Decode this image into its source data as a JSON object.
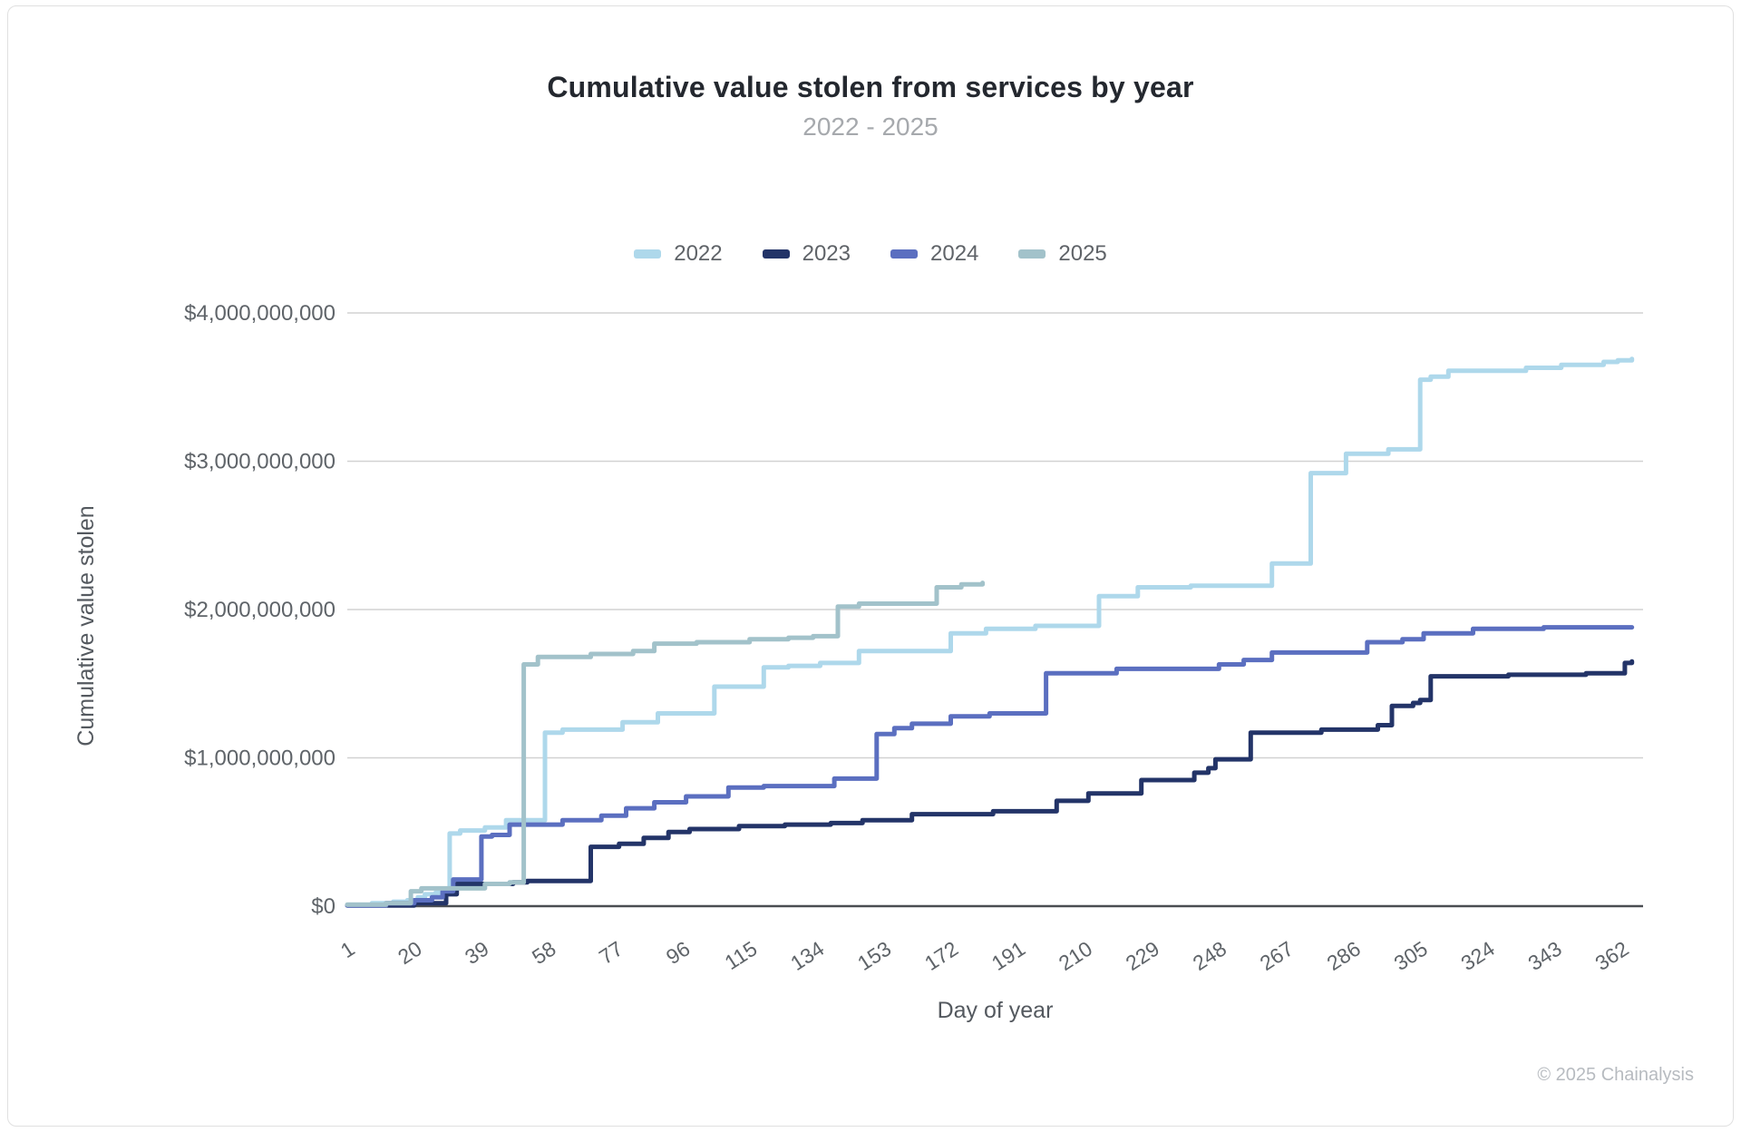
{
  "chart_data": {
    "type": "line",
    "step_mode": "step-after",
    "title": "Cumulative value stolen from services by year",
    "subtitle": "2022 - 2025",
    "xlabel": "Day of year",
    "ylabel": "Cumulative value stolen",
    "xlim": [
      1,
      365
    ],
    "ylim_billions": [
      0,
      4
    ],
    "grid": "horizontal",
    "legend_position": "top-center",
    "x_ticks": [
      1,
      20,
      39,
      58,
      77,
      96,
      115,
      134,
      153,
      172,
      191,
      210,
      229,
      248,
      267,
      286,
      305,
      324,
      343,
      362
    ],
    "y_ticks": [
      {
        "value_billions": 4,
        "label": "$4,000,000,000"
      },
      {
        "value_billions": 3,
        "label": "$3,000,000,000"
      },
      {
        "value_billions": 2,
        "label": "$2,000,000,000"
      },
      {
        "value_billions": 1,
        "label": "$1,000,000,000"
      },
      {
        "value_billions": 0,
        "label": "$0"
      }
    ],
    "series": [
      {
        "name": "2022",
        "color": "#aed8eb",
        "points_day_vs_billions": [
          [
            1,
            0.01
          ],
          [
            8,
            0.02
          ],
          [
            14,
            0.03
          ],
          [
            18,
            0.04
          ],
          [
            21,
            0.06
          ],
          [
            23,
            0.08
          ],
          [
            26,
            0.09
          ],
          [
            30,
            0.49
          ],
          [
            33,
            0.51
          ],
          [
            40,
            0.53
          ],
          [
            46,
            0.58
          ],
          [
            57,
            1.17
          ],
          [
            62,
            1.19
          ],
          [
            79,
            1.24
          ],
          [
            89,
            1.3
          ],
          [
            105,
            1.48
          ],
          [
            119,
            1.61
          ],
          [
            126,
            1.62
          ],
          [
            135,
            1.64
          ],
          [
            146,
            1.72
          ],
          [
            172,
            1.84
          ],
          [
            182,
            1.87
          ],
          [
            196,
            1.89
          ],
          [
            214,
            2.09
          ],
          [
            225,
            2.15
          ],
          [
            240,
            2.16
          ],
          [
            263,
            2.31
          ],
          [
            274,
            2.92
          ],
          [
            284,
            3.05
          ],
          [
            296,
            3.08
          ],
          [
            305,
            3.55
          ],
          [
            308,
            3.57
          ],
          [
            313,
            3.61
          ],
          [
            335,
            3.63
          ],
          [
            345,
            3.65
          ],
          [
            357,
            3.67
          ],
          [
            361,
            3.68
          ],
          [
            365,
            3.69
          ]
        ]
      },
      {
        "name": "2023",
        "color": "#233468",
        "points_day_vs_billions": [
          [
            1,
            0.005
          ],
          [
            20,
            0.02
          ],
          [
            29,
            0.08
          ],
          [
            32,
            0.15
          ],
          [
            48,
            0.16
          ],
          [
            52,
            0.17
          ],
          [
            70,
            0.4
          ],
          [
            78,
            0.42
          ],
          [
            85,
            0.46
          ],
          [
            92,
            0.5
          ],
          [
            98,
            0.52
          ],
          [
            112,
            0.54
          ],
          [
            125,
            0.55
          ],
          [
            138,
            0.56
          ],
          [
            147,
            0.58
          ],
          [
            161,
            0.62
          ],
          [
            184,
            0.64
          ],
          [
            202,
            0.71
          ],
          [
            211,
            0.76
          ],
          [
            226,
            0.85
          ],
          [
            241,
            0.9
          ],
          [
            245,
            0.93
          ],
          [
            247,
            0.99
          ],
          [
            257,
            1.17
          ],
          [
            277,
            1.19
          ],
          [
            293,
            1.22
          ],
          [
            297,
            1.35
          ],
          [
            303,
            1.37
          ],
          [
            305,
            1.39
          ],
          [
            308,
            1.55
          ],
          [
            330,
            1.56
          ],
          [
            352,
            1.57
          ],
          [
            363,
            1.64
          ],
          [
            365,
            1.65
          ]
        ]
      },
      {
        "name": "2024",
        "color": "#5b6fc0",
        "points_day_vs_billions": [
          [
            1,
            0.005
          ],
          [
            12,
            0.02
          ],
          [
            20,
            0.04
          ],
          [
            25,
            0.06
          ],
          [
            28,
            0.1
          ],
          [
            31,
            0.18
          ],
          [
            39,
            0.47
          ],
          [
            42,
            0.48
          ],
          [
            47,
            0.55
          ],
          [
            62,
            0.58
          ],
          [
            73,
            0.61
          ],
          [
            80,
            0.66
          ],
          [
            88,
            0.7
          ],
          [
            97,
            0.74
          ],
          [
            109,
            0.8
          ],
          [
            119,
            0.81
          ],
          [
            139,
            0.86
          ],
          [
            151,
            1.16
          ],
          [
            156,
            1.2
          ],
          [
            161,
            1.23
          ],
          [
            172,
            1.28
          ],
          [
            183,
            1.3
          ],
          [
            199,
            1.57
          ],
          [
            219,
            1.6
          ],
          [
            248,
            1.63
          ],
          [
            255,
            1.66
          ],
          [
            263,
            1.71
          ],
          [
            290,
            1.78
          ],
          [
            300,
            1.8
          ],
          [
            306,
            1.84
          ],
          [
            320,
            1.87
          ],
          [
            340,
            1.88
          ],
          [
            365,
            1.88
          ]
        ]
      },
      {
        "name": "2025",
        "color": "#a2c2ca",
        "points_day_vs_billions": [
          [
            1,
            0.01
          ],
          [
            12,
            0.02
          ],
          [
            19,
            0.1
          ],
          [
            22,
            0.12
          ],
          [
            40,
            0.15
          ],
          [
            47,
            0.16
          ],
          [
            51,
            1.63
          ],
          [
            55,
            1.68
          ],
          [
            70,
            1.7
          ],
          [
            82,
            1.72
          ],
          [
            88,
            1.77
          ],
          [
            100,
            1.78
          ],
          [
            115,
            1.8
          ],
          [
            126,
            1.81
          ],
          [
            133,
            1.82
          ],
          [
            140,
            2.02
          ],
          [
            146,
            2.04
          ],
          [
            168,
            2.15
          ],
          [
            175,
            2.17
          ],
          [
            181,
            2.18
          ]
        ]
      }
    ]
  },
  "footer": {
    "copyright": "© 2025 Chainalysis"
  }
}
